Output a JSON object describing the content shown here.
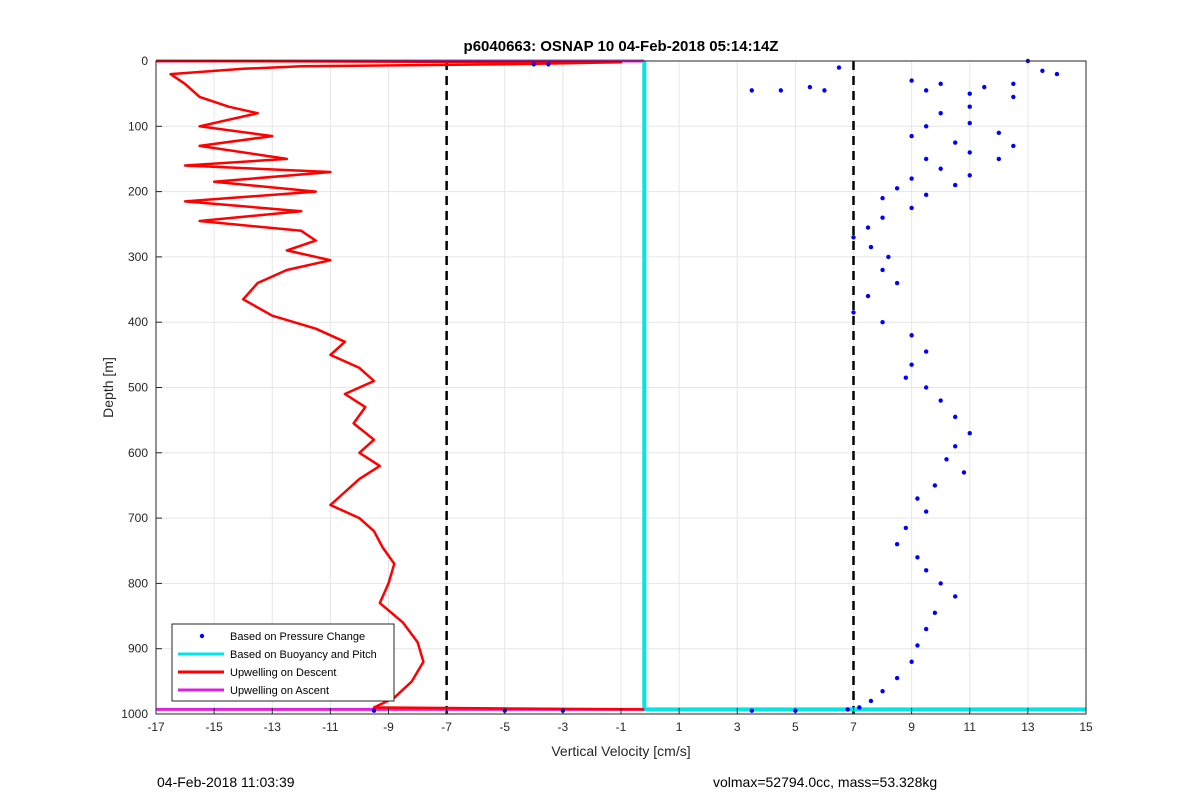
{
  "chart_data": {
    "type": "scatter",
    "title": "p6040663: OSNAP 10 04-Feb-2018 05:14:14Z",
    "xlabel": "Vertical Velocity [cm/s]",
    "ylabel": "Depth [m]",
    "xlim": [
      -17,
      15
    ],
    "ylim": [
      0,
      1000
    ],
    "y_reversed": true,
    "grid": true,
    "x_ticks": [
      -17,
      -15,
      -13,
      -11,
      -9,
      -7,
      -5,
      -3,
      -1,
      1,
      3,
      5,
      7,
      9,
      11,
      13,
      15
    ],
    "y_ticks": [
      0,
      100,
      200,
      300,
      400,
      500,
      600,
      700,
      800,
      900,
      1000
    ],
    "legend_position": "bottom-left",
    "series": [
      {
        "name": "Based on Pressure Change",
        "color": "#0000ff",
        "style": "dots",
        "points": [
          [
            13.0,
            0
          ],
          [
            13.5,
            15
          ],
          [
            14.0,
            20
          ],
          [
            12.5,
            35
          ],
          [
            11.5,
            40
          ],
          [
            10.0,
            35
          ],
          [
            9.0,
            30
          ],
          [
            9.5,
            45
          ],
          [
            11.0,
            50
          ],
          [
            12.5,
            55
          ],
          [
            11.0,
            70
          ],
          [
            10.0,
            80
          ],
          [
            9.5,
            100
          ],
          [
            11.0,
            95
          ],
          [
            12.0,
            110
          ],
          [
            9.0,
            115
          ],
          [
            10.5,
            125
          ],
          [
            12.5,
            130
          ],
          [
            11.0,
            140
          ],
          [
            9.5,
            150
          ],
          [
            12.0,
            150
          ],
          [
            10.0,
            165
          ],
          [
            11.0,
            175
          ],
          [
            9.0,
            180
          ],
          [
            10.5,
            190
          ],
          [
            8.5,
            195
          ],
          [
            9.5,
            205
          ],
          [
            8.0,
            210
          ],
          [
            9.0,
            225
          ],
          [
            8.0,
            240
          ],
          [
            7.5,
            255
          ],
          [
            7.0,
            270
          ],
          [
            7.6,
            285
          ],
          [
            8.2,
            300
          ],
          [
            8.0,
            320
          ],
          [
            8.5,
            340
          ],
          [
            7.5,
            360
          ],
          [
            7.0,
            385
          ],
          [
            8.0,
            400
          ],
          [
            9.0,
            420
          ],
          [
            9.5,
            445
          ],
          [
            9.0,
            465
          ],
          [
            8.8,
            485
          ],
          [
            9.5,
            500
          ],
          [
            10.0,
            520
          ],
          [
            10.5,
            545
          ],
          [
            11.0,
            570
          ],
          [
            10.5,
            590
          ],
          [
            10.2,
            610
          ],
          [
            10.8,
            630
          ],
          [
            9.8,
            650
          ],
          [
            9.2,
            670
          ],
          [
            9.5,
            690
          ],
          [
            8.8,
            715
          ],
          [
            8.5,
            740
          ],
          [
            9.2,
            760
          ],
          [
            9.5,
            780
          ],
          [
            10.0,
            800
          ],
          [
            10.5,
            820
          ],
          [
            9.8,
            845
          ],
          [
            9.5,
            870
          ],
          [
            9.2,
            895
          ],
          [
            9.0,
            920
          ],
          [
            8.5,
            945
          ],
          [
            8.0,
            965
          ],
          [
            7.6,
            980
          ],
          [
            7.2,
            990
          ],
          [
            6.8,
            993
          ],
          [
            5.0,
            995
          ],
          [
            3.5,
            995
          ],
          [
            -3.0,
            995
          ],
          [
            -5.0,
            995
          ],
          [
            -9.5,
            995
          ],
          [
            4.5,
            45
          ],
          [
            3.5,
            45
          ],
          [
            5.5,
            40
          ],
          [
            6.0,
            45
          ],
          [
            6.5,
            10
          ],
          [
            -4.0,
            5
          ],
          [
            -3.5,
            5
          ]
        ]
      },
      {
        "name": "Based on Buoyancy and Pitch",
        "color": "#00e5e5",
        "style": "line",
        "points": [
          [
            -0.2,
            0
          ],
          [
            -0.2,
            993
          ],
          [
            15,
            993
          ]
        ]
      },
      {
        "name": "Upwelling on Descent",
        "color": "#ff0000",
        "style": "line",
        "points": [
          [
            -17,
            0
          ],
          [
            -1.0,
            2
          ],
          [
            -5.0,
            5
          ],
          [
            -12.0,
            8
          ],
          [
            -14.0,
            12
          ],
          [
            -16.5,
            20
          ],
          [
            -16.0,
            35
          ],
          [
            -15.5,
            55
          ],
          [
            -14.5,
            70
          ],
          [
            -13.5,
            80
          ],
          [
            -15.5,
            100
          ],
          [
            -13.0,
            115
          ],
          [
            -15.5,
            130
          ],
          [
            -12.5,
            150
          ],
          [
            -16.0,
            160
          ],
          [
            -11.0,
            170
          ],
          [
            -15.0,
            185
          ],
          [
            -11.5,
            200
          ],
          [
            -16.0,
            215
          ],
          [
            -12.0,
            230
          ],
          [
            -15.5,
            245
          ],
          [
            -12.0,
            260
          ],
          [
            -11.5,
            275
          ],
          [
            -12.5,
            290
          ],
          [
            -11.0,
            305
          ],
          [
            -12.5,
            320
          ],
          [
            -13.5,
            340
          ],
          [
            -14.0,
            365
          ],
          [
            -13.0,
            390
          ],
          [
            -11.5,
            410
          ],
          [
            -10.5,
            430
          ],
          [
            -11.0,
            450
          ],
          [
            -10.0,
            470
          ],
          [
            -9.5,
            490
          ],
          [
            -10.5,
            510
          ],
          [
            -9.8,
            530
          ],
          [
            -10.2,
            555
          ],
          [
            -9.5,
            580
          ],
          [
            -10.0,
            600
          ],
          [
            -9.3,
            620
          ],
          [
            -10.0,
            640
          ],
          [
            -10.5,
            660
          ],
          [
            -11.0,
            680
          ],
          [
            -10.0,
            700
          ],
          [
            -9.5,
            720
          ],
          [
            -9.2,
            745
          ],
          [
            -8.8,
            770
          ],
          [
            -9.0,
            800
          ],
          [
            -9.3,
            830
          ],
          [
            -8.5,
            860
          ],
          [
            -8.0,
            890
          ],
          [
            -7.8,
            920
          ],
          [
            -8.2,
            950
          ],
          [
            -8.8,
            975
          ],
          [
            -9.5,
            990
          ],
          [
            -0.2,
            993
          ]
        ]
      },
      {
        "name": "Upwelling on Ascent",
        "color": "#e020e0",
        "style": "line",
        "points": [
          [
            -17,
            0
          ],
          [
            -0.2,
            0
          ],
          [
            -17,
            993
          ],
          [
            -0.2,
            993
          ]
        ]
      }
    ],
    "thresholds": [
      -7,
      7
    ],
    "footer_left": "04-Feb-2018 11:03:39",
    "footer_right": "volmax=52794.0cc, mass=53.328kg"
  }
}
